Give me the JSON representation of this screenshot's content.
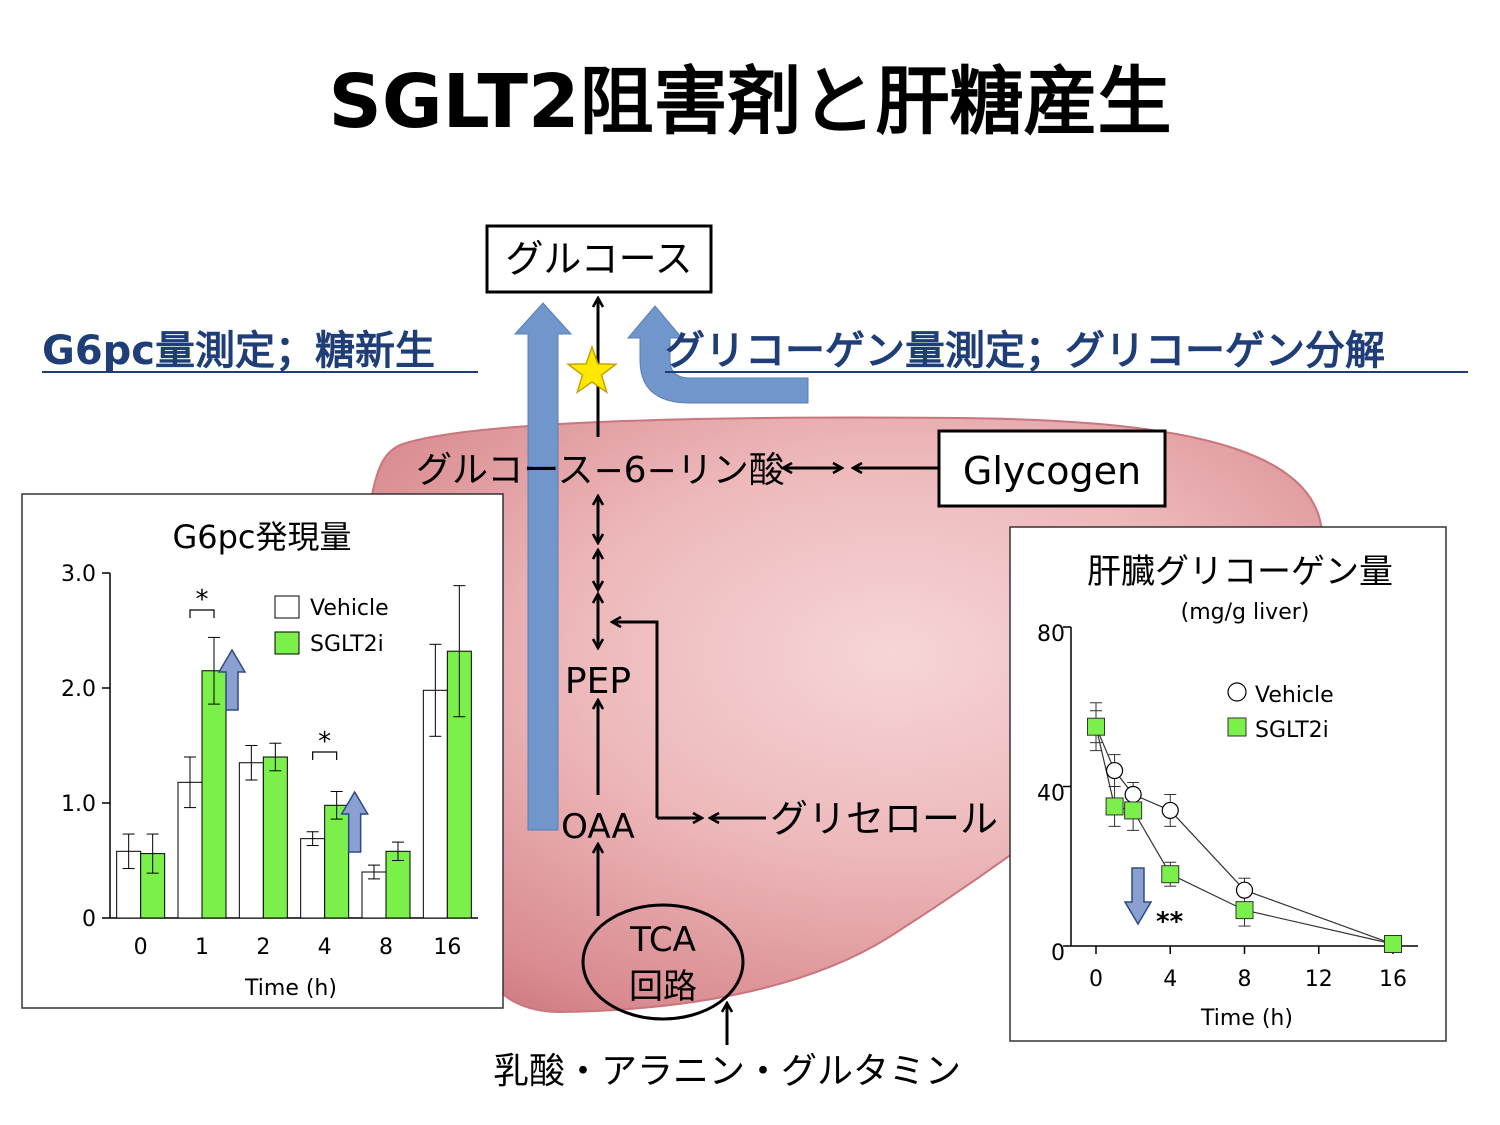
{
  "title": "SGLT2阻害剤と肝糖産生",
  "left_label": "G6pc量測定；糖新生",
  "right_label": "グリコーゲン量測定；グリコーゲン分解",
  "pathway": {
    "glucose": "グルコース",
    "g6p": "グルコース−6−リン酸",
    "glycogen": "Glycogen",
    "pep": "PEP",
    "oaa": "OAA",
    "glycerol": "グリセロール",
    "tca_line1": "TCA",
    "tca_line2": "回路",
    "substrates": "乳酸・アラニン・グルタミン"
  },
  "colors": {
    "green": "#7CF04A",
    "blue_arrow": "#7096CC",
    "liver": "#E8A9AC",
    "star": "#FFE800",
    "label_blue": "#1F3E78"
  },
  "chart_data": [
    {
      "type": "bar",
      "title": "G6pc発現量",
      "xlabel": "Time (h)",
      "ylabel": "",
      "categories": [
        "0",
        "1",
        "2",
        "4",
        "8",
        "16"
      ],
      "ylim": [
        0,
        3.0
      ],
      "yticks": [
        "0",
        "1.0",
        "2.0",
        "3.0"
      ],
      "series": [
        {
          "name": "Vehicle",
          "color": "#FFFFFF",
          "values": [
            0.58,
            1.18,
            1.35,
            0.69,
            0.4,
            1.98
          ],
          "errors": [
            0.15,
            0.22,
            0.15,
            0.06,
            0.06,
            0.4
          ]
        },
        {
          "name": "SGLT2i",
          "color": "#7CF04A",
          "values": [
            0.56,
            2.15,
            1.4,
            0.98,
            0.58,
            2.32
          ],
          "errors": [
            0.17,
            0.29,
            0.12,
            0.12,
            0.08,
            0.57
          ]
        }
      ],
      "significance": [
        {
          "category": "1",
          "label": "*"
        },
        {
          "category": "4",
          "label": "*"
        }
      ],
      "legend": "top-right"
    },
    {
      "type": "line",
      "title": "肝臓グリコーゲン量",
      "subtitle": "(mg/g liver)",
      "xlabel": "Time (h)",
      "ylabel": "",
      "xlim": [
        0,
        16
      ],
      "ylim": [
        0,
        80
      ],
      "xticks": [
        "0",
        "4",
        "8",
        "12",
        "16"
      ],
      "yticks": [
        "0",
        "40",
        "80"
      ],
      "series": [
        {
          "name": "Vehicle",
          "marker": "circle",
          "x": [
            0,
            1,
            2,
            4,
            8,
            16
          ],
          "y": [
            55,
            44,
            38,
            34,
            14,
            0.5
          ],
          "errors": [
            4,
            4,
            3,
            4,
            3,
            0.5
          ]
        },
        {
          "name": "SGLT2i",
          "marker": "square",
          "x": [
            0,
            1,
            2,
            4,
            8,
            16
          ],
          "y": [
            55,
            35,
            34,
            18,
            9,
            0.5
          ],
          "errors": [
            6,
            5,
            5,
            3,
            4,
            0.5
          ]
        }
      ],
      "annotation": "**",
      "legend": "top-right"
    }
  ]
}
